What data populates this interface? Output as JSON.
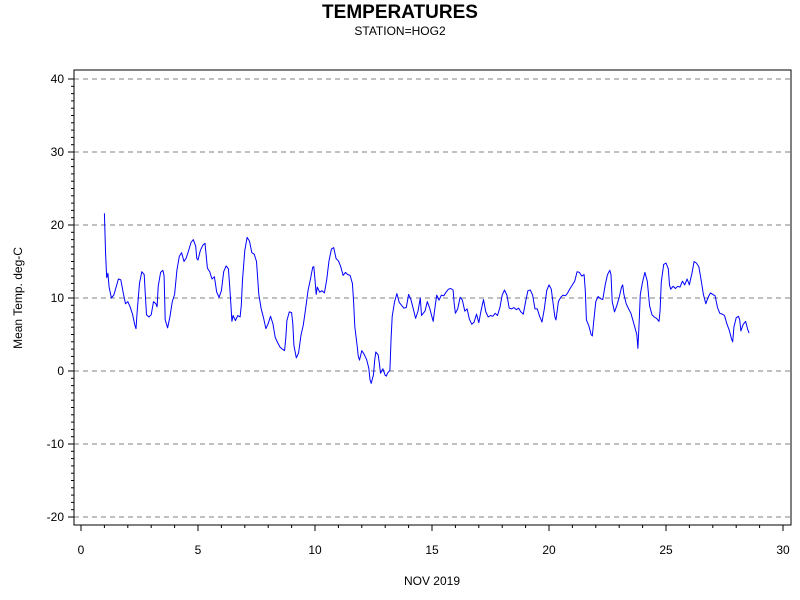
{
  "chart_data": {
    "type": "line",
    "title": "TEMPERATURES",
    "subtitle": "STATION=HOG2",
    "xlabel": "NOV 2019",
    "ylabel": "Mean Temp. deg-C",
    "xlim": [
      0,
      30
    ],
    "ylim": [
      -20,
      40
    ],
    "x_ticks": [
      0,
      5,
      10,
      15,
      20,
      25,
      30
    ],
    "y_ticks": [
      -20,
      -10,
      0,
      10,
      20,
      30,
      40
    ],
    "grid": "horizontal dashed",
    "series": [
      {
        "color": "#0000ff",
        "points": [
          [
            1.0,
            21.6
          ],
          [
            1.05,
            16.0
          ],
          [
            1.1,
            12.8
          ],
          [
            1.15,
            13.4
          ],
          [
            1.2,
            11.5
          ],
          [
            1.3,
            10.0
          ],
          [
            1.4,
            10.4
          ],
          [
            1.5,
            11.5
          ],
          [
            1.6,
            12.6
          ],
          [
            1.7,
            12.5
          ],
          [
            1.8,
            10.8
          ],
          [
            1.9,
            9.2
          ],
          [
            2.0,
            9.5
          ],
          [
            2.1,
            8.8
          ],
          [
            2.2,
            7.8
          ],
          [
            2.3,
            6.3
          ],
          [
            2.35,
            5.8
          ],
          [
            2.4,
            8.2
          ],
          [
            2.5,
            12.0
          ],
          [
            2.6,
            13.6
          ],
          [
            2.7,
            13.2
          ],
          [
            2.75,
            10.5
          ],
          [
            2.8,
            7.7
          ],
          [
            2.9,
            7.4
          ],
          [
            3.0,
            7.7
          ],
          [
            3.1,
            9.5
          ],
          [
            3.2,
            9.2
          ],
          [
            3.25,
            8.8
          ],
          [
            3.3,
            11.6
          ],
          [
            3.4,
            13.5
          ],
          [
            3.5,
            13.8
          ],
          [
            3.55,
            13.0
          ],
          [
            3.6,
            7.0
          ],
          [
            3.7,
            5.9
          ],
          [
            3.8,
            7.4
          ],
          [
            3.9,
            9.5
          ],
          [
            4.0,
            10.5
          ],
          [
            4.1,
            13.8
          ],
          [
            4.2,
            15.7
          ],
          [
            4.3,
            16.2
          ],
          [
            4.4,
            15.0
          ],
          [
            4.5,
            15.5
          ],
          [
            4.6,
            16.5
          ],
          [
            4.7,
            17.6
          ],
          [
            4.8,
            18.0
          ],
          [
            4.9,
            17.1
          ],
          [
            4.95,
            15.4
          ],
          [
            5.0,
            15.2
          ],
          [
            5.1,
            16.5
          ],
          [
            5.2,
            17.2
          ],
          [
            5.3,
            17.5
          ],
          [
            5.35,
            15.8
          ],
          [
            5.4,
            14.1
          ],
          [
            5.5,
            13.6
          ],
          [
            5.6,
            12.6
          ],
          [
            5.7,
            12.9
          ],
          [
            5.8,
            10.8
          ],
          [
            5.9,
            10.1
          ],
          [
            6.0,
            11.0
          ],
          [
            6.1,
            13.6
          ],
          [
            6.2,
            14.4
          ],
          [
            6.3,
            14.0
          ],
          [
            6.35,
            11.8
          ],
          [
            6.4,
            9.3
          ],
          [
            6.45,
            6.8
          ],
          [
            6.5,
            7.6
          ],
          [
            6.6,
            6.9
          ],
          [
            6.7,
            7.6
          ],
          [
            6.8,
            7.4
          ],
          [
            6.85,
            9.0
          ],
          [
            6.9,
            12.5
          ],
          [
            7.0,
            16.5
          ],
          [
            7.1,
            18.3
          ],
          [
            7.2,
            17.8
          ],
          [
            7.3,
            16.2
          ],
          [
            7.4,
            16.0
          ],
          [
            7.5,
            15.0
          ],
          [
            7.6,
            10.5
          ],
          [
            7.7,
            8.5
          ],
          [
            7.8,
            7.3
          ],
          [
            7.9,
            5.8
          ],
          [
            8.0,
            6.5
          ],
          [
            8.1,
            7.5
          ],
          [
            8.2,
            6.5
          ],
          [
            8.3,
            4.6
          ],
          [
            8.4,
            3.9
          ],
          [
            8.5,
            3.3
          ],
          [
            8.6,
            3.0
          ],
          [
            8.7,
            2.8
          ],
          [
            8.75,
            4.5
          ],
          [
            8.8,
            6.9
          ],
          [
            8.9,
            8.1
          ],
          [
            9.0,
            8.0
          ],
          [
            9.05,
            6.5
          ],
          [
            9.1,
            3.5
          ],
          [
            9.2,
            1.8
          ],
          [
            9.3,
            2.5
          ],
          [
            9.4,
            4.9
          ],
          [
            9.5,
            6.3
          ],
          [
            9.6,
            8.5
          ],
          [
            9.7,
            11.0
          ],
          [
            9.8,
            12.5
          ],
          [
            9.9,
            14.2
          ],
          [
            9.95,
            14.3
          ],
          [
            10.0,
            12.5
          ],
          [
            10.05,
            10.5
          ],
          [
            10.1,
            11.5
          ],
          [
            10.2,
            10.8
          ],
          [
            10.3,
            11.0
          ],
          [
            10.4,
            10.7
          ],
          [
            10.5,
            12.5
          ],
          [
            10.6,
            15.1
          ],
          [
            10.7,
            16.7
          ],
          [
            10.8,
            16.9
          ],
          [
            10.9,
            15.4
          ],
          [
            11.0,
            15.1
          ],
          [
            11.1,
            14.3
          ],
          [
            11.2,
            13.1
          ],
          [
            11.3,
            13.5
          ],
          [
            11.4,
            13.2
          ],
          [
            11.5,
            13.1
          ],
          [
            11.6,
            12.0
          ],
          [
            11.65,
            9.5
          ],
          [
            11.7,
            6.1
          ],
          [
            11.8,
            3.5
          ],
          [
            11.85,
            2.0
          ],
          [
            11.9,
            1.5
          ],
          [
            12.0,
            2.8
          ],
          [
            12.1,
            2.3
          ],
          [
            12.2,
            1.6
          ],
          [
            12.3,
            0.4
          ],
          [
            12.35,
            -1.2
          ],
          [
            12.4,
            -1.7
          ],
          [
            12.5,
            -0.5
          ],
          [
            12.55,
            1.5
          ],
          [
            12.6,
            2.6
          ],
          [
            12.7,
            2.2
          ],
          [
            12.75,
            1.0
          ],
          [
            12.8,
            -0.3
          ],
          [
            12.9,
            0.3
          ],
          [
            13.0,
            -0.6
          ],
          [
            13.05,
            -0.7
          ],
          [
            13.1,
            -0.3
          ],
          [
            13.2,
            0.1
          ],
          [
            13.25,
            4.5
          ],
          [
            13.3,
            7.5
          ],
          [
            13.4,
            9.5
          ],
          [
            13.5,
            10.6
          ],
          [
            13.6,
            9.4
          ],
          [
            13.7,
            9.0
          ],
          [
            13.8,
            8.6
          ],
          [
            13.9,
            8.7
          ],
          [
            14.0,
            10.5
          ],
          [
            14.1,
            9.8
          ],
          [
            14.2,
            8.5
          ],
          [
            14.3,
            7.2
          ],
          [
            14.4,
            8.2
          ],
          [
            14.5,
            10.0
          ],
          [
            14.55,
            7.6
          ],
          [
            14.6,
            7.8
          ],
          [
            14.7,
            8.2
          ],
          [
            14.8,
            9.5
          ],
          [
            14.9,
            8.6
          ],
          [
            15.0,
            7.4
          ],
          [
            15.05,
            6.8
          ],
          [
            15.1,
            8.0
          ],
          [
            15.2,
            10.4
          ],
          [
            15.3,
            9.7
          ],
          [
            15.4,
            10.4
          ],
          [
            15.5,
            10.3
          ],
          [
            15.6,
            10.8
          ],
          [
            15.7,
            11.2
          ],
          [
            15.8,
            11.3
          ],
          [
            15.9,
            11.1
          ],
          [
            15.95,
            9.2
          ],
          [
            16.0,
            7.9
          ],
          [
            16.1,
            8.5
          ],
          [
            16.2,
            10.1
          ],
          [
            16.3,
            9.7
          ],
          [
            16.4,
            8.2
          ],
          [
            16.5,
            8.5
          ],
          [
            16.6,
            7.1
          ],
          [
            16.7,
            6.4
          ],
          [
            16.8,
            6.7
          ],
          [
            16.9,
            7.8
          ],
          [
            17.0,
            6.6
          ],
          [
            17.1,
            8.3
          ],
          [
            17.2,
            9.8
          ],
          [
            17.3,
            8.1
          ],
          [
            17.4,
            7.4
          ],
          [
            17.5,
            7.6
          ],
          [
            17.6,
            7.5
          ],
          [
            17.7,
            7.9
          ],
          [
            17.8,
            7.6
          ],
          [
            17.9,
            8.7
          ],
          [
            18.0,
            10.4
          ],
          [
            18.1,
            11.1
          ],
          [
            18.2,
            10.4
          ],
          [
            18.3,
            8.6
          ],
          [
            18.4,
            8.5
          ],
          [
            18.5,
            8.7
          ],
          [
            18.6,
            8.4
          ],
          [
            18.7,
            8.6
          ],
          [
            18.8,
            8.1
          ],
          [
            18.9,
            7.8
          ],
          [
            19.0,
            9.5
          ],
          [
            19.1,
            11.0
          ],
          [
            19.2,
            11.1
          ],
          [
            19.3,
            10.4
          ],
          [
            19.4,
            8.5
          ],
          [
            19.5,
            8.5
          ],
          [
            19.6,
            7.5
          ],
          [
            19.7,
            6.7
          ],
          [
            19.8,
            8.5
          ],
          [
            19.9,
            11.0
          ],
          [
            20.0,
            11.8
          ],
          [
            20.1,
            11.2
          ],
          [
            20.2,
            8.6
          ],
          [
            20.25,
            7.4
          ],
          [
            20.3,
            7.0
          ],
          [
            20.4,
            9.5
          ],
          [
            20.5,
            10.1
          ],
          [
            20.6,
            10.4
          ],
          [
            20.7,
            10.3
          ],
          [
            20.8,
            10.7
          ],
          [
            20.9,
            11.3
          ],
          [
            21.0,
            11.8
          ],
          [
            21.1,
            12.3
          ],
          [
            21.2,
            13.6
          ],
          [
            21.3,
            13.5
          ],
          [
            21.4,
            13.0
          ],
          [
            21.5,
            13.2
          ],
          [
            21.55,
            11.0
          ],
          [
            21.6,
            7.0
          ],
          [
            21.7,
            6.2
          ],
          [
            21.8,
            5.0
          ],
          [
            21.85,
            4.8
          ],
          [
            21.9,
            6.5
          ],
          [
            22.0,
            9.5
          ],
          [
            22.1,
            10.2
          ],
          [
            22.2,
            9.9
          ],
          [
            22.3,
            9.8
          ],
          [
            22.4,
            11.8
          ],
          [
            22.5,
            13.2
          ],
          [
            22.6,
            13.8
          ],
          [
            22.65,
            13.2
          ],
          [
            22.7,
            9.5
          ],
          [
            22.8,
            8.1
          ],
          [
            22.9,
            9.0
          ],
          [
            23.0,
            10.1
          ],
          [
            23.1,
            11.5
          ],
          [
            23.15,
            11.8
          ],
          [
            23.2,
            10.5
          ],
          [
            23.3,
            9.2
          ],
          [
            23.4,
            8.5
          ],
          [
            23.5,
            7.9
          ],
          [
            23.6,
            6.8
          ],
          [
            23.7,
            5.6
          ],
          [
            23.75,
            5.0
          ],
          [
            23.8,
            3.1
          ],
          [
            23.85,
            6.5
          ],
          [
            23.9,
            10.5
          ],
          [
            24.0,
            12.2
          ],
          [
            24.1,
            13.5
          ],
          [
            24.2,
            12.3
          ],
          [
            24.3,
            8.9
          ],
          [
            24.4,
            7.7
          ],
          [
            24.5,
            7.4
          ],
          [
            24.6,
            7.2
          ],
          [
            24.7,
            6.8
          ],
          [
            24.75,
            8.3
          ],
          [
            24.8,
            12.2
          ],
          [
            24.9,
            14.6
          ],
          [
            25.0,
            14.8
          ],
          [
            25.1,
            14.0
          ],
          [
            25.15,
            11.8
          ],
          [
            25.2,
            11.2
          ],
          [
            25.3,
            11.6
          ],
          [
            25.4,
            11.3
          ],
          [
            25.5,
            11.6
          ],
          [
            25.6,
            11.5
          ],
          [
            25.7,
            12.3
          ],
          [
            25.8,
            11.8
          ],
          [
            25.9,
            12.6
          ],
          [
            26.0,
            11.8
          ],
          [
            26.05,
            12.6
          ],
          [
            26.1,
            13.2
          ],
          [
            26.2,
            15.0
          ],
          [
            26.3,
            14.8
          ],
          [
            26.4,
            14.3
          ],
          [
            26.5,
            12.5
          ],
          [
            26.6,
            10.5
          ],
          [
            26.7,
            9.2
          ],
          [
            26.8,
            10.1
          ],
          [
            26.9,
            10.7
          ],
          [
            27.0,
            10.5
          ],
          [
            27.1,
            10.3
          ],
          [
            27.2,
            8.7
          ],
          [
            27.3,
            7.9
          ],
          [
            27.4,
            7.8
          ],
          [
            27.5,
            7.6
          ],
          [
            27.6,
            6.5
          ],
          [
            27.7,
            5.6
          ],
          [
            27.75,
            5.0
          ],
          [
            27.8,
            4.4
          ],
          [
            27.85,
            4.0
          ],
          [
            27.9,
            6.0
          ],
          [
            28.0,
            7.3
          ],
          [
            28.1,
            7.5
          ],
          [
            28.15,
            7.0
          ],
          [
            28.2,
            5.5
          ],
          [
            28.3,
            6.4
          ],
          [
            28.4,
            6.8
          ],
          [
            28.5,
            5.6
          ],
          [
            28.55,
            5.2
          ]
        ]
      }
    ]
  }
}
